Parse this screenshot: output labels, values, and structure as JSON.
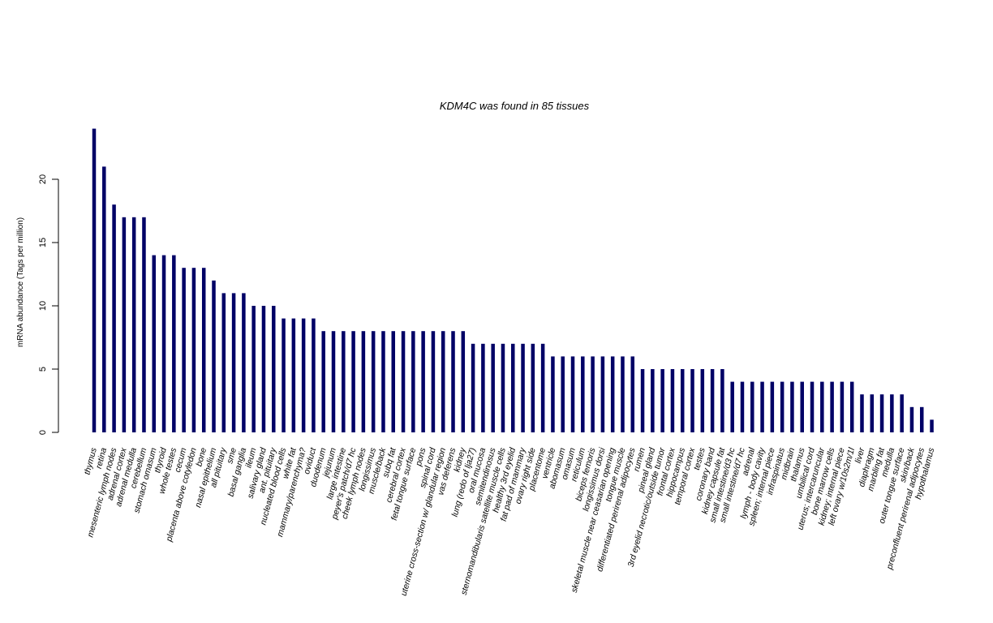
{
  "chart_data": {
    "type": "bar",
    "title": "KDM4C  was found in  85  tissues",
    "xlabel": "",
    "ylabel": "mRNA abundance (Tags per million)",
    "ylim": [
      0,
      24
    ],
    "yticks": [
      0,
      5,
      10,
      15,
      20
    ],
    "grid": false,
    "bar_color": "#000066",
    "categories": [
      "thymus",
      "retina",
      "mesenteric lymph nodes",
      "adrenal cortex",
      "adrenal medulla",
      "cerebellum",
      "stomach omasum",
      "thyroid",
      "whole testes",
      "cecum",
      "placenta above cotyledon",
      "bone",
      "nasal epithelium",
      "all pituitary",
      "sme",
      "basal ganglia",
      "ileum",
      "salivary gland",
      "ant. pituitary",
      "nucleated blood cells",
      "white fat",
      "mammary/parenchyma?",
      "oviduct",
      "duodenum",
      "jejunum",
      "large intestine",
      "peyer's patch/d7 hc",
      "cheek lymph nodes",
      "longissimus",
      "muscle/back",
      "subq fat",
      "cerebral cortex",
      "fetal tongue surface",
      "pons",
      "spinal cord",
      "uterine cross-section w/ glandular region",
      "vas deferens",
      "kidney",
      "lung (redo of lja27)",
      "oral mucosa",
      "semitendinosus",
      "sternomandibularis satellite muscle cells",
      "healthy 3rd eyelid",
      "fat pad of mammary",
      "ovary right side",
      "placentome",
      "ventricle",
      "abomasum",
      "omasum",
      "reticulum",
      "biceps femoris",
      "longissimus dorsi",
      "skeletal muscle near ceasarian opening",
      "tongue muscle",
      "differentiated perirenal adipocytes",
      "rumen",
      "pineal gland",
      "3rd eyelid necrotic/outside tumor",
      "frontal cortex",
      "hippocampus",
      "temporal cortex",
      "testes",
      "coronary band",
      "kidney capsule fat",
      "small intestine/d3 hc",
      "small intestine/d7 hc",
      "adrenal",
      "lymph - body cavity",
      "spleen; internal piece",
      "infraspinatus",
      "midbrain",
      "thalamus",
      "umbilical cord",
      "uterus; intercaruncular",
      "bone marrow cells",
      "kidney; internal piece",
      "left ovary w/10s2m/1l",
      "liver",
      "diaphragm",
      "marbling fat",
      "medulla",
      "outer tongue surface",
      "skin/back",
      "preconfluent perirenal adipocytes",
      "hypothalamus"
    ],
    "values": [
      24,
      21,
      18,
      17,
      17,
      17,
      14,
      14,
      14,
      13,
      13,
      13,
      12,
      11,
      11,
      11,
      10,
      10,
      10,
      9,
      9,
      9,
      9,
      8,
      8,
      8,
      8,
      8,
      8,
      8,
      8,
      8,
      8,
      8,
      8,
      8,
      8,
      8,
      7,
      7,
      7,
      7,
      7,
      7,
      7,
      7,
      6,
      6,
      6,
      6,
      6,
      6,
      6,
      6,
      6,
      5,
      5,
      5,
      5,
      5,
      5,
      5,
      5,
      5,
      4,
      4,
      4,
      4,
      4,
      4,
      4,
      4,
      4,
      4,
      4,
      4,
      4,
      3,
      3,
      3,
      3,
      3,
      2,
      2,
      1
    ]
  }
}
